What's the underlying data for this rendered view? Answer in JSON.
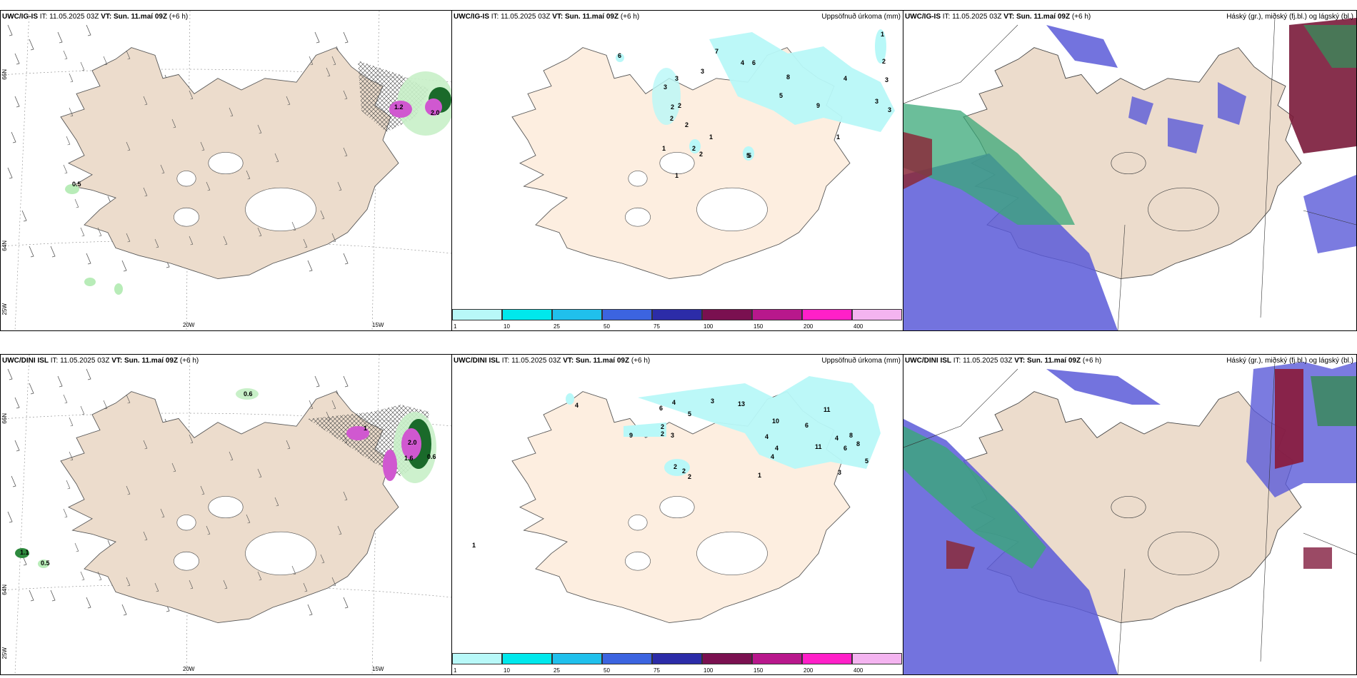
{
  "panels": {
    "wind_top": {
      "model": "UWC/IG-IS",
      "it_label": "IT:",
      "it": "11.05.2025 03Z",
      "vt_label": "VT:",
      "vt": "Sun. 11.maí 09Z",
      "lead": "(+6 h)"
    },
    "precip_top": {
      "model": "UWC/IG-IS",
      "it_label": "IT:",
      "it": "11.05.2025 03Z",
      "vt_label": "VT:",
      "vt": "Sun. 11.maí 09Z",
      "lead": "(+6 h)",
      "right_title": "Uppsöfnuð úrkoma (mm)"
    },
    "cloud_top": {
      "model": "UWC/IG-IS",
      "it_label": "IT:",
      "it": "11.05.2025 03Z",
      "vt_label": "VT:",
      "vt": "Sun. 11.maí 09Z",
      "lead": "(+6 h)",
      "right_title": "Háský (gr.), miðský (fj.bl.) og lágský (bl.)"
    },
    "wind_bottom": {
      "model": "UWC/DINI ISL",
      "it_label": "IT:",
      "it": "11.05.2025 03Z",
      "vt_label": "VT:",
      "vt": "Sun. 11.maí 09Z",
      "lead": "(+6 h)"
    },
    "precip_bottom": {
      "model": "UWC/DINI ISL",
      "it_label": "IT:",
      "it": "11.05.2025 03Z",
      "vt_label": "VT:",
      "vt": "Sun. 11.maí 09Z",
      "lead": "(+6 h)",
      "right_title": "Uppsöfnuð úrkoma (mm)"
    },
    "cloud_bottom": {
      "model": "UWC/DINI ISL",
      "it_label": "IT:",
      "it": "11.05.2025 03Z",
      "vt_label": "VT:",
      "vt": "Sun. 11.maí 09Z",
      "lead": "(+6 h)",
      "right_title": "Háský (gr.), miðský (fj.bl.) og lágský (bl.)"
    }
  },
  "axes": {
    "lat_66": "66N",
    "lat_64": "64N",
    "lon_25": "25W",
    "lon_20": "20W",
    "lon_15": "15W"
  },
  "wind_labels": {
    "top": [
      "0.5",
      "1.2",
      "2.0"
    ],
    "bottom": [
      "0.6",
      "1.1",
      "0.5",
      "2.0",
      "1.6",
      "0.6",
      "1"
    ]
  },
  "precip_labels": {
    "top": [
      "6",
      "7",
      "4",
      "6",
      "8",
      "5",
      "5",
      "9",
      "4",
      "1",
      "2",
      "3",
      "3",
      "3",
      "3",
      "2",
      "2",
      "2",
      "2",
      "1",
      "2",
      "2",
      "1",
      "5",
      "1",
      "3",
      "3",
      "1"
    ],
    "bottom": [
      "4",
      "6",
      "4",
      "5",
      "3",
      "13",
      "11",
      "10",
      "6",
      "4",
      "11",
      "8",
      "6",
      "8",
      "4",
      "4",
      "4",
      "5",
      "3",
      "9",
      "2",
      "2",
      "3",
      "2",
      "2",
      "2",
      "1",
      "1"
    ]
  },
  "legend": {
    "ticks": [
      "1",
      "10",
      "25",
      "50",
      "75",
      "100",
      "150",
      "200",
      "400"
    ],
    "colors": [
      "#b8f8f8",
      "#00e8ec",
      "#20c0ec",
      "#3c64e0",
      "#2c2ca8",
      "#7a1050",
      "#b8188c",
      "#ff20c8",
      "#f4b4f0"
    ]
  },
  "colors": {
    "land": "#ecdccc",
    "land_precip": "#fdeee0",
    "coast": "#555555"
  }
}
